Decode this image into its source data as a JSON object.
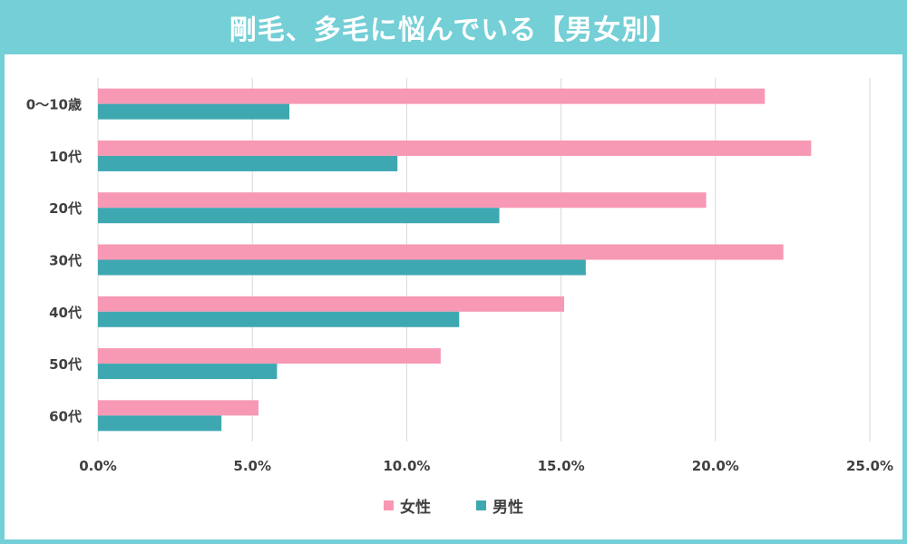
{
  "title": "剛毛、多毛に悩んでいる【男女別】",
  "colors": {
    "frame": "#74cfd6",
    "female": "#f799b4",
    "male": "#3ea8b1",
    "grid": "#d9d9d9",
    "text": "#404040"
  },
  "chart_data": {
    "type": "bar",
    "orientation": "horizontal",
    "categories": [
      "0〜10歳",
      "10代",
      "20代",
      "30代",
      "40代",
      "50代",
      "60代"
    ],
    "series": [
      {
        "name": "女性",
        "values": [
          21.6,
          23.1,
          19.7,
          22.2,
          15.1,
          11.1,
          5.2
        ]
      },
      {
        "name": "男性",
        "values": [
          6.2,
          9.7,
          13.0,
          15.8,
          11.7,
          5.8,
          4.0
        ]
      }
    ],
    "xlim": [
      0,
      25
    ],
    "xticks": [
      "0.0%",
      "5.0%",
      "10.0%",
      "15.0%",
      "20.0%",
      "25.0%"
    ],
    "grid": true,
    "legend_position": "bottom"
  }
}
